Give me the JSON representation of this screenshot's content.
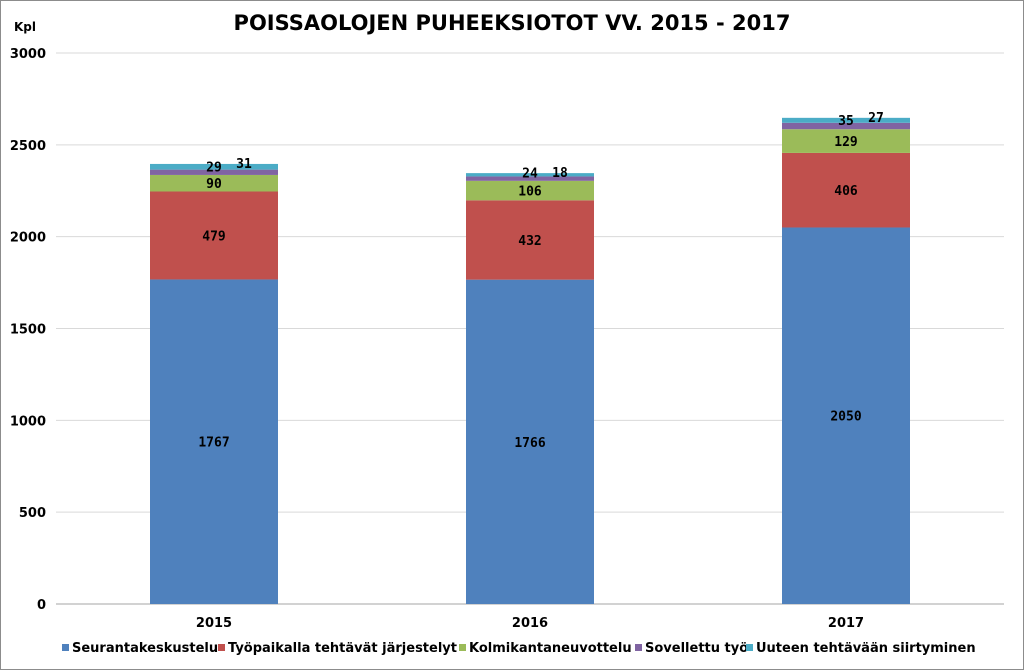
{
  "chart_data": {
    "type": "bar",
    "stacked": true,
    "title": "POISSAOLOJEN PUHEEKSIOTOT VV. 2015 - 2017",
    "ylabel": "Kpl",
    "xlabel": "",
    "ylim": [
      0,
      3000
    ],
    "yticks": [
      0,
      500,
      1000,
      1500,
      2000,
      2500,
      3000
    ],
    "grid": true,
    "legend_position": "bottom",
    "categories": [
      "2015",
      "2016",
      "2017"
    ],
    "series": [
      {
        "name": "Seurantakeskustelu",
        "color": "#4f81bd",
        "values": [
          1767,
          1766,
          2050
        ]
      },
      {
        "name": "Työpaikalla tehtävät järjestelyt",
        "color": "#c0504d",
        "values": [
          479,
          432,
          406
        ]
      },
      {
        "name": "Kolmikantaneuvottelu",
        "color": "#9bbb59",
        "values": [
          90,
          106,
          129
        ]
      },
      {
        "name": "Sovellettu työ",
        "color": "#8064a2",
        "values": [
          29,
          24,
          35
        ]
      },
      {
        "name": "Uuteen tehtävään siirtyminen",
        "color": "#4bacc6",
        "values": [
          31,
          18,
          27
        ]
      }
    ]
  }
}
